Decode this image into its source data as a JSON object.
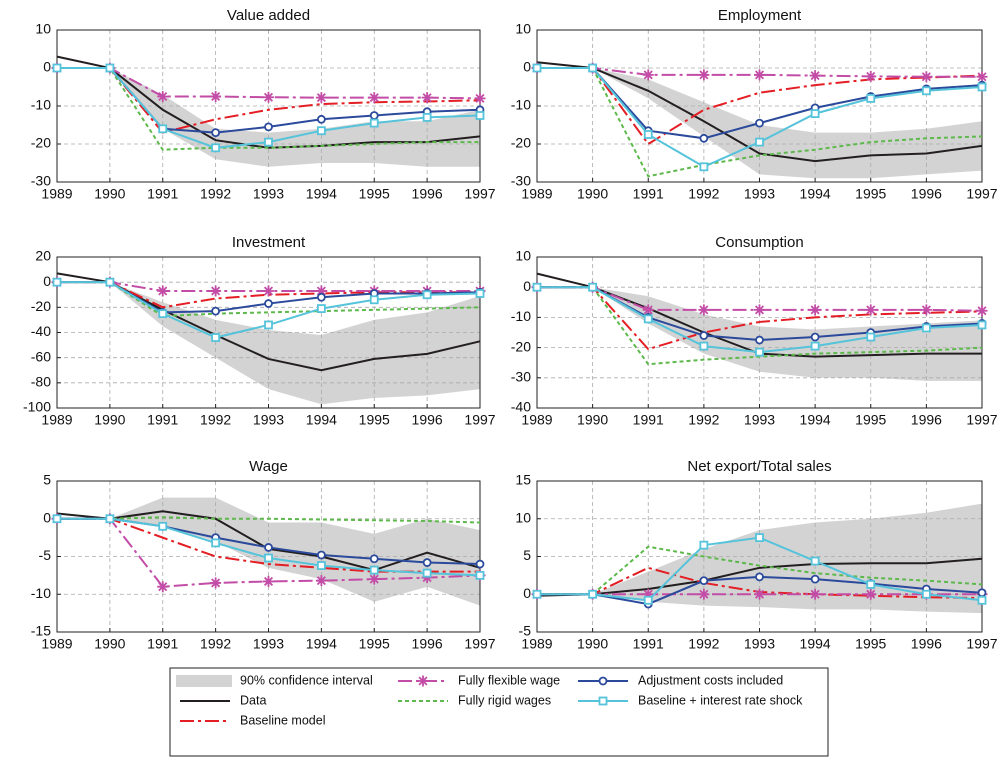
{
  "chart_data": [
    {
      "type": "line",
      "title": "Value added",
      "x": [
        1989,
        1990,
        1991,
        1992,
        1993,
        1994,
        1995,
        1996,
        1997
      ],
      "xlim": [
        1989,
        1997
      ],
      "xticks": [
        1989,
        1990,
        1991,
        1992,
        1993,
        1994,
        1995,
        1996,
        1997
      ],
      "ylim": [
        -30,
        10
      ],
      "yticks": [
        -30,
        -20,
        -10,
        0,
        10
      ],
      "grid": true,
      "band": {
        "upper": [
          null,
          0,
          -7,
          -16,
          -17,
          -16,
          -14,
          -14,
          -11
        ],
        "lower": [
          null,
          0,
          -16,
          -24,
          -26,
          -25,
          -25,
          -26,
          -26
        ]
      },
      "series": [
        {
          "values": [
            3,
            0,
            -11,
            -19,
            -21,
            -20.5,
            -19.5,
            -19.5,
            -18
          ]
        },
        {
          "values": [
            0,
            0,
            -17,
            -13.5,
            -11,
            -9.5,
            -9,
            -8.8,
            -8.5
          ]
        },
        {
          "values": [
            0,
            0,
            -7.5,
            -7.5,
            -7.7,
            -7.8,
            -7.8,
            -7.8,
            -8
          ]
        },
        {
          "values": [
            0,
            0,
            -21.5,
            -21,
            -21,
            -20.5,
            -20,
            -19.5,
            -19.5
          ]
        },
        {
          "values": [
            0,
            0,
            -16,
            -17,
            -15.5,
            -13.5,
            -12.5,
            -11.5,
            -11
          ]
        },
        {
          "values": [
            0,
            0,
            -16,
            -21,
            -19.5,
            -16.5,
            -14.5,
            -13,
            -12.5
          ]
        }
      ]
    },
    {
      "type": "line",
      "title": "Employment",
      "x": [
        1989,
        1990,
        1991,
        1992,
        1993,
        1994,
        1995,
        1996,
        1997
      ],
      "xlim": [
        1989,
        1997
      ],
      "xticks": [
        1989,
        1990,
        1991,
        1992,
        1993,
        1994,
        1995,
        1996,
        1997
      ],
      "ylim": [
        -30,
        10
      ],
      "yticks": [
        -30,
        -20,
        -10,
        0,
        10
      ],
      "grid": true,
      "band": {
        "upper": [
          null,
          0,
          -3,
          -9,
          -15,
          -17,
          -17,
          -16,
          -14
        ],
        "lower": [
          null,
          0,
          -8,
          -18,
          -28,
          -29,
          -29,
          -28,
          -27
        ]
      },
      "series": [
        {
          "values": [
            1.5,
            0,
            -6,
            -14,
            -22.5,
            -24.5,
            -23,
            -22.5,
            -20.5
          ]
        },
        {
          "values": [
            0,
            0,
            -20,
            -11,
            -6.5,
            -4.5,
            -3,
            -2.5,
            -2
          ]
        },
        {
          "values": [
            0,
            0,
            -1.8,
            -1.8,
            -1.8,
            -2,
            -2.2,
            -2.3,
            -2.3
          ]
        },
        {
          "values": [
            0,
            0,
            -28.5,
            -25.5,
            -23,
            -21.5,
            -19.5,
            -18.5,
            -18
          ]
        },
        {
          "values": [
            0,
            0,
            -16.5,
            -18.5,
            -14.5,
            -10.5,
            -7.5,
            -5.5,
            -4.5
          ]
        },
        {
          "values": [
            0,
            0,
            -17.5,
            -26,
            -19.5,
            -12,
            -8,
            -6,
            -5
          ]
        }
      ]
    },
    {
      "type": "line",
      "title": "Investment",
      "x": [
        1989,
        1990,
        1991,
        1992,
        1993,
        1994,
        1995,
        1996,
        1997
      ],
      "xlim": [
        1989,
        1997
      ],
      "xticks": [
        1989,
        1990,
        1991,
        1992,
        1993,
        1994,
        1995,
        1996,
        1997
      ],
      "ylim": [
        -100,
        20
      ],
      "yticks": [
        -100,
        -80,
        -60,
        -40,
        -20,
        0,
        20
      ],
      "grid": true,
      "band": {
        "upper": [
          null,
          0,
          -16,
          -30,
          -38,
          -42,
          -30,
          -24,
          -11
        ],
        "lower": [
          null,
          0,
          -35,
          -60,
          -85,
          -97,
          -92,
          -90,
          -85
        ]
      },
      "series": [
        {
          "values": [
            7,
            0,
            -22,
            -42,
            -61,
            -70,
            -61,
            -57,
            -47
          ]
        },
        {
          "values": [
            0,
            0,
            -20,
            -13,
            -10,
            -9,
            -8,
            -8,
            -8
          ]
        },
        {
          "values": [
            0,
            0,
            -7,
            -7,
            -7,
            -7,
            -7,
            -7,
            -7
          ]
        },
        {
          "values": [
            0,
            0,
            -27,
            -25,
            -24,
            -23,
            -22,
            -21,
            -20
          ]
        },
        {
          "values": [
            0,
            0,
            -24,
            -23,
            -17,
            -12,
            -9,
            -9,
            -8
          ]
        },
        {
          "values": [
            0,
            0,
            -25,
            -44,
            -34,
            -21,
            -14,
            -10,
            -9
          ]
        }
      ]
    },
    {
      "type": "line",
      "title": "Consumption",
      "x": [
        1989,
        1990,
        1991,
        1992,
        1993,
        1994,
        1995,
        1996,
        1997
      ],
      "xlim": [
        1989,
        1997
      ],
      "xticks": [
        1989,
        1990,
        1991,
        1992,
        1993,
        1994,
        1995,
        1996,
        1997
      ],
      "ylim": [
        -40,
        10
      ],
      "yticks": [
        -40,
        -30,
        -20,
        -10,
        0,
        10
      ],
      "grid": true,
      "band": {
        "upper": [
          null,
          0,
          -3,
          -9,
          -13,
          -14,
          -13,
          -12,
          -11
        ],
        "lower": [
          null,
          0,
          -12,
          -22,
          -28,
          -30,
          -30,
          -31,
          -31
        ]
      },
      "series": [
        {
          "values": [
            4.5,
            0,
            -7,
            -15,
            -22,
            -23,
            -22.5,
            -22,
            -22
          ]
        },
        {
          "values": [
            0,
            0,
            -20.5,
            -15,
            -11.5,
            -10,
            -9,
            -8.5,
            -8
          ]
        },
        {
          "values": [
            0,
            0,
            -7.5,
            -7.5,
            -7.5,
            -7.5,
            -7.5,
            -7.5,
            -7.8
          ]
        },
        {
          "values": [
            0,
            0,
            -25.5,
            -24,
            -23,
            -22,
            -21.5,
            -21,
            -20
          ]
        },
        {
          "values": [
            0,
            0,
            -10,
            -16,
            -17.5,
            -16.5,
            -15,
            -13,
            -12
          ]
        },
        {
          "values": [
            0,
            0,
            -10.5,
            -19.5,
            -21.5,
            -19.5,
            -16.5,
            -13.5,
            -12.5
          ]
        }
      ]
    },
    {
      "type": "line",
      "title": "Wage",
      "x": [
        1989,
        1990,
        1991,
        1992,
        1993,
        1994,
        1995,
        1996,
        1997
      ],
      "xlim": [
        1989,
        1997
      ],
      "xticks": [
        1989,
        1990,
        1991,
        1992,
        1993,
        1994,
        1995,
        1996,
        1997
      ],
      "ylim": [
        -15,
        5
      ],
      "yticks": [
        -15,
        -10,
        -5,
        0,
        5
      ],
      "grid": true,
      "band": {
        "upper": [
          null,
          0,
          2.8,
          2.8,
          -0.5,
          -0.5,
          -2,
          0,
          -1.5
        ],
        "lower": [
          null,
          0,
          -1,
          -3,
          -6.5,
          -8,
          -11,
          -9,
          -11.5
        ]
      },
      "series": [
        {
          "values": [
            0.7,
            0,
            1,
            0,
            -4,
            -5,
            -6.8,
            -4.5,
            -6.5
          ]
        },
        {
          "values": [
            0,
            0,
            -2.5,
            -5,
            -6,
            -6.5,
            -7,
            -7,
            -7
          ]
        },
        {
          "values": [
            0,
            0,
            -9,
            -8.5,
            -8.3,
            -8.2,
            -8,
            -7.8,
            -7.5
          ]
        },
        {
          "values": [
            0,
            0,
            0.2,
            0,
            0,
            -0.1,
            -0.2,
            -0.3,
            -0.5
          ]
        },
        {
          "values": [
            0,
            0,
            -1,
            -2.5,
            -3.8,
            -4.8,
            -5.3,
            -5.8,
            -6
          ]
        },
        {
          "values": [
            0,
            0,
            -1,
            -3.2,
            -5.2,
            -6.2,
            -6.8,
            -7.2,
            -7.5
          ]
        }
      ]
    },
    {
      "type": "line",
      "title": "Net export/Total sales",
      "x": [
        1989,
        1990,
        1991,
        1992,
        1993,
        1994,
        1995,
        1996,
        1997
      ],
      "xlim": [
        1989,
        1997
      ],
      "xticks": [
        1989,
        1990,
        1991,
        1992,
        1993,
        1994,
        1995,
        1996,
        1997
      ],
      "ylim": [
        -5,
        15
      ],
      "yticks": [
        -5,
        0,
        5,
        10,
        15
      ],
      "grid": true,
      "band": {
        "upper": [
          null,
          0,
          3,
          6,
          8.5,
          9.5,
          10,
          10.8,
          12
        ],
        "lower": [
          null,
          0,
          -1,
          -1.5,
          -1.7,
          -2,
          -2,
          -2.3,
          -2.5
        ]
      },
      "series": [
        {
          "values": [
            -0.2,
            0,
            0.7,
            1.8,
            3.5,
            4,
            4.1,
            4.1,
            4.7
          ]
        },
        {
          "values": [
            0,
            0,
            3.5,
            1.5,
            0.3,
            0,
            -0.2,
            -0.4,
            -0.5
          ]
        },
        {
          "values": [
            0,
            0,
            0,
            0,
            0,
            0,
            0,
            0,
            0
          ]
        },
        {
          "values": [
            0,
            0,
            6.3,
            5,
            3.8,
            2.8,
            2.2,
            1.8,
            1.3
          ]
        },
        {
          "values": [
            0,
            0,
            -1.3,
            1.8,
            2.3,
            2,
            1.4,
            0.7,
            0.2
          ]
        },
        {
          "values": [
            0,
            0,
            -0.8,
            6.5,
            7.5,
            4.4,
            1.3,
            0,
            -0.8
          ]
        }
      ]
    }
  ],
  "legend": [
    {
      "name": "90% confidence interval",
      "color": "#d3d3d3",
      "style": "band"
    },
    {
      "name": "Data",
      "color": "#231f20",
      "style": "solid"
    },
    {
      "name": "Baseline model",
      "color": "#e31e24",
      "style": "dashdot"
    },
    {
      "name": "Fully flexible wage",
      "color": "#c24ca6",
      "style": "dashdot",
      "marker": "star"
    },
    {
      "name": "Fully rigid wages",
      "color": "#5db94b",
      "style": "dotted"
    },
    {
      "name": "Adjustment costs included",
      "color": "#2b4a9c",
      "style": "solid",
      "marker": "circle"
    },
    {
      "name": "Baseline + interest rate shock",
      "color": "#55c3da",
      "style": "solid",
      "marker": "square"
    }
  ]
}
